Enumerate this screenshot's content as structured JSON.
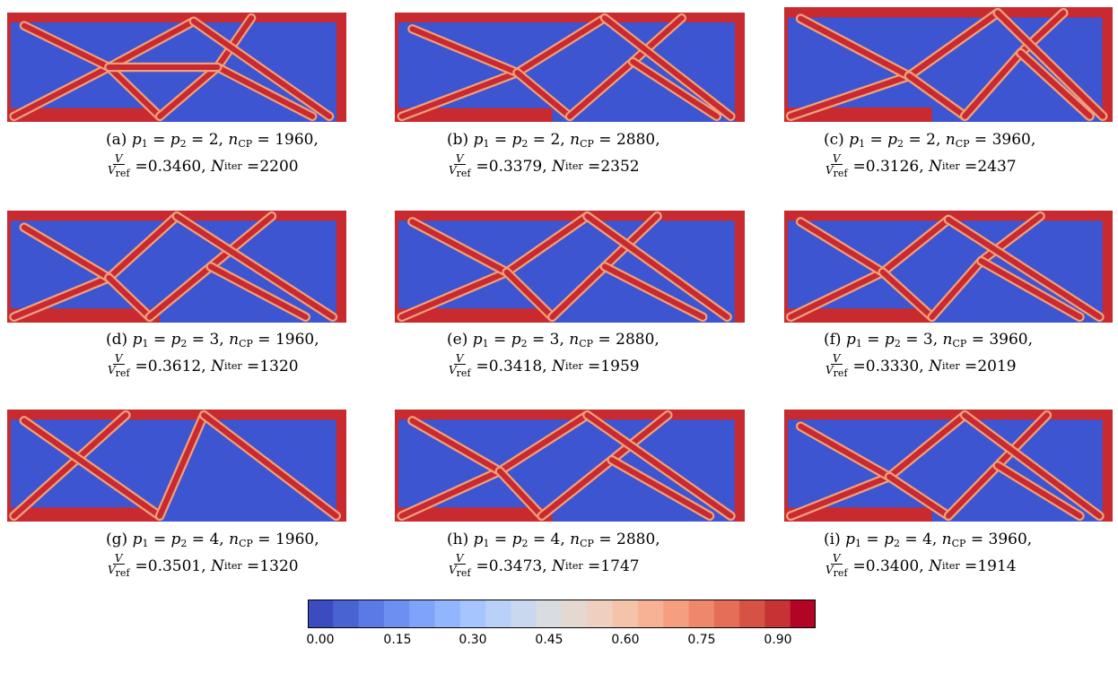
{
  "figure": {
    "panels": [
      {
        "label": "(a)",
        "p": "2",
        "n_cp": "1960",
        "v_ratio": "0.3460",
        "n_iter": "2200"
      },
      {
        "label": "(b)",
        "p": "2",
        "n_cp": "2880",
        "v_ratio": "0.3379",
        "n_iter": "2352"
      },
      {
        "label": "(c)",
        "p": "2",
        "n_cp": "3960",
        "v_ratio": "0.3126",
        "n_iter": "2437"
      },
      {
        "label": "(d)",
        "p": "3",
        "n_cp": "1960",
        "v_ratio": "0.3612",
        "n_iter": "1320"
      },
      {
        "label": "(e)",
        "p": "3",
        "n_cp": "2880",
        "v_ratio": "0.3418",
        "n_iter": "1959"
      },
      {
        "label": "(f)",
        "p": "3",
        "n_cp": "3960",
        "v_ratio": "0.3330",
        "n_iter": "2019"
      },
      {
        "label": "(g)",
        "p": "4",
        "n_cp": "1960",
        "v_ratio": "0.3501",
        "n_iter": "1320"
      },
      {
        "label": "(h)",
        "p": "4",
        "n_cp": "2880",
        "v_ratio": "0.3473",
        "n_iter": "1747"
      },
      {
        "label": "(i)",
        "p": "4",
        "n_cp": "3960",
        "v_ratio": "0.3400",
        "n_iter": "1914"
      }
    ],
    "colorbar": {
      "ticks": [
        "0.00",
        "0.15",
        "0.30",
        "0.45",
        "0.60",
        "0.75",
        "0.90"
      ],
      "colors": [
        "#3b4cc0",
        "#4a63d3",
        "#5b7ae5",
        "#6d8ff1",
        "#80a3fa",
        "#93b5fe",
        "#a6c4fe",
        "#b9d0f9",
        "#cad8ef",
        "#d9dce1",
        "#e5d8d1",
        "#efcfbf",
        "#f5c2aa",
        "#f7b194",
        "#f59f80",
        "#ef886b",
        "#e46f56",
        "#d65244",
        "#c53334",
        "#b40426"
      ]
    },
    "density_colors": {
      "void": "#3d55d0",
      "solid": "#c92a2f",
      "edge": "#f0a07c"
    }
  }
}
